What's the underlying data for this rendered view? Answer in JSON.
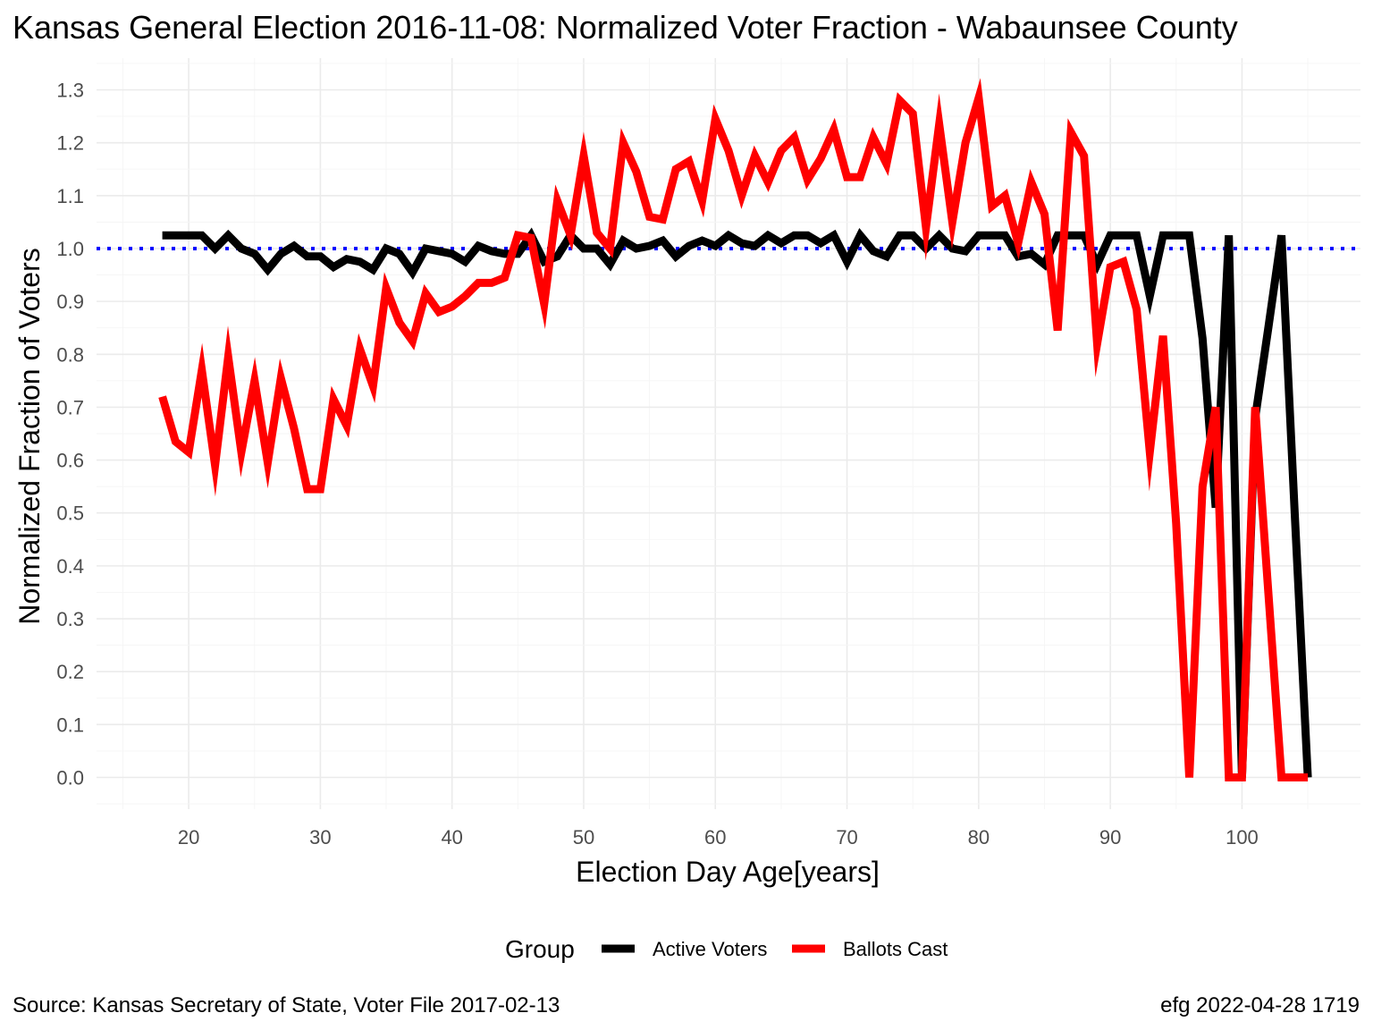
{
  "chart_data": {
    "type": "line",
    "title": "Kansas General Election 2016-11-08:  Normalized Voter Fraction - Wabaunsee County",
    "xlabel": "Election Day Age[years]",
    "ylabel": "Normalized Fraction of Voters",
    "xlim": [
      13,
      109
    ],
    "ylim": [
      -0.06,
      1.36
    ],
    "x_ticks": [
      20,
      30,
      40,
      50,
      60,
      70,
      80,
      90,
      100
    ],
    "x_tick_labels": [
      "20",
      "30",
      "40",
      "50",
      "60",
      "70",
      "80",
      "90",
      "100"
    ],
    "y_ticks": [
      0.0,
      0.1,
      0.2,
      0.3,
      0.4,
      0.5,
      0.6,
      0.7,
      0.8,
      0.9,
      1.0,
      1.1,
      1.2,
      1.3
    ],
    "y_tick_labels": [
      "0.0",
      "0.1",
      "0.2",
      "0.3",
      "0.4",
      "0.5",
      "0.6",
      "0.7",
      "0.8",
      "0.9",
      "1.0",
      "1.1",
      "1.2",
      "1.3"
    ],
    "grid": true,
    "reference_line": {
      "y": 1.0,
      "color": "#0000ff",
      "style": "dotted"
    },
    "legend": {
      "title": "Group",
      "position": "bottom"
    },
    "series": [
      {
        "name": "Active Voters",
        "color": "#000000",
        "x": [
          18,
          19,
          20,
          21,
          22,
          23,
          24,
          25,
          26,
          27,
          28,
          29,
          30,
          31,
          32,
          33,
          34,
          35,
          36,
          37,
          38,
          39,
          40,
          41,
          42,
          43,
          44,
          45,
          46,
          47,
          48,
          49,
          50,
          51,
          52,
          53,
          54,
          55,
          56,
          57,
          58,
          59,
          60,
          61,
          62,
          63,
          64,
          65,
          66,
          67,
          68,
          69,
          70,
          71,
          72,
          73,
          74,
          75,
          76,
          77,
          78,
          79,
          80,
          81,
          82,
          83,
          84,
          85,
          86,
          87,
          88,
          89,
          90,
          91,
          92,
          93,
          94,
          95,
          96,
          97,
          98,
          99,
          100,
          101,
          102,
          103,
          104,
          105
        ],
        "values": [
          1.025,
          1.025,
          1.025,
          1.025,
          1.0,
          1.025,
          1.0,
          0.99,
          0.96,
          0.99,
          1.005,
          0.985,
          0.985,
          0.965,
          0.98,
          0.975,
          0.96,
          1.0,
          0.99,
          0.955,
          1.0,
          0.995,
          0.99,
          0.975,
          1.005,
          0.995,
          0.99,
          0.99,
          1.025,
          0.975,
          0.985,
          1.025,
          1.0,
          1.0,
          0.97,
          1.015,
          1.0,
          1.005,
          1.015,
          0.985,
          1.005,
          1.015,
          1.005,
          1.025,
          1.01,
          1.005,
          1.025,
          1.01,
          1.025,
          1.025,
          1.01,
          1.025,
          0.975,
          1.025,
          0.995,
          0.985,
          1.025,
          1.025,
          1.0,
          1.025,
          1.0,
          0.995,
          1.025,
          1.025,
          1.025,
          0.985,
          0.99,
          0.97,
          1.025,
          1.025,
          1.025,
          0.97,
          1.025,
          1.025,
          1.025,
          0.91,
          1.025,
          1.025,
          1.025,
          0.83,
          0.51,
          1.025,
          0.0,
          0.68,
          0.85,
          1.025,
          0.5,
          0.0
        ]
      },
      {
        "name": "Ballots Cast",
        "color": "#ff0000",
        "x": [
          18,
          19,
          20,
          21,
          22,
          23,
          24,
          25,
          26,
          27,
          28,
          29,
          30,
          31,
          32,
          33,
          34,
          35,
          36,
          37,
          38,
          39,
          40,
          41,
          42,
          43,
          44,
          45,
          46,
          47,
          48,
          49,
          50,
          51,
          52,
          53,
          54,
          55,
          56,
          57,
          58,
          59,
          60,
          61,
          62,
          63,
          64,
          65,
          66,
          67,
          68,
          69,
          70,
          71,
          72,
          73,
          74,
          75,
          76,
          77,
          78,
          79,
          80,
          81,
          82,
          83,
          84,
          85,
          86,
          87,
          88,
          89,
          90,
          91,
          92,
          93,
          94,
          95,
          96,
          97,
          98,
          99,
          100,
          101,
          102,
          103,
          104,
          105
        ],
        "values": [
          0.72,
          0.635,
          0.615,
          0.77,
          0.59,
          0.795,
          0.615,
          0.75,
          0.595,
          0.755,
          0.66,
          0.545,
          0.545,
          0.715,
          0.665,
          0.81,
          0.74,
          0.925,
          0.86,
          0.825,
          0.915,
          0.88,
          0.89,
          0.91,
          0.935,
          0.935,
          0.945,
          1.025,
          1.02,
          0.895,
          1.09,
          1.025,
          1.175,
          1.03,
          1.0,
          1.2,
          1.145,
          1.06,
          1.055,
          1.15,
          1.165,
          1.09,
          1.245,
          1.185,
          1.1,
          1.175,
          1.125,
          1.185,
          1.21,
          1.13,
          1.17,
          1.225,
          1.135,
          1.135,
          1.21,
          1.16,
          1.28,
          1.255,
          1.04,
          1.235,
          1.05,
          1.2,
          1.285,
          1.08,
          1.1,
          1.01,
          1.125,
          1.065,
          0.845,
          1.22,
          1.175,
          0.82,
          0.965,
          0.975,
          0.885,
          0.615,
          0.835,
          0.48,
          0.0,
          0.55,
          0.7,
          0.0,
          0.0,
          0.7,
          0.35,
          0.0,
          0.0,
          0.0
        ]
      }
    ]
  },
  "caption_left": "Source:  Kansas Secretary of State, Voter File  2017-02-13",
  "caption_right": "efg 2022-04-28 1719"
}
